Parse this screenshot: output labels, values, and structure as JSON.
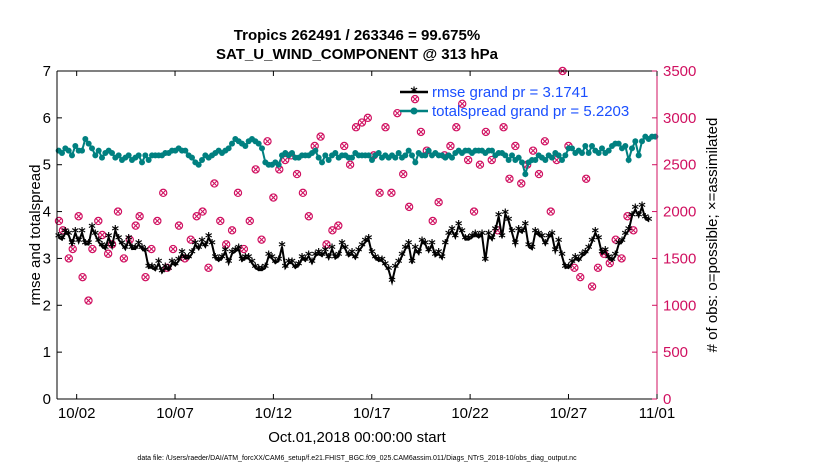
{
  "chart_data": {
    "type": "line",
    "title_line1": "Tropics 262491 / 263346 = 99.675%",
    "title_line2": "SAT_U_WIND_COMPONENT @ 313 hPa",
    "xlabel": "Oct.01,2018 00:00:00 start",
    "ylabel_left": "rmse and totalspread",
    "ylabel_right": "# of obs: o=possible; ×=assimilated",
    "footnote": "data file: /Users/raeder/DAI/ATM_forcXX/CAM6_setup/f.e21.FHIST_BGC.f09_025.CAM6assim.011/Diags_NTrS_2018-10/obs_diag_output.nc",
    "xlim": [
      0.5,
      31.0
    ],
    "ylim_left": [
      0,
      7
    ],
    "ylim_right": [
      0,
      3500
    ],
    "x_ticks": [
      1.5,
      6.5,
      11.5,
      16.5,
      21.5,
      26.5,
      31.0
    ],
    "x_tick_labels": [
      "10/02",
      "10/07",
      "10/12",
      "10/17",
      "10/22",
      "10/27",
      "11/01"
    ],
    "y_ticks_left": [
      0,
      1,
      2,
      3,
      4,
      5,
      6,
      7
    ],
    "y_tick_labels_left": [
      "0",
      "1",
      "2",
      "3",
      "4",
      "5",
      "6",
      "7"
    ],
    "y_ticks_right": [
      0,
      500,
      1000,
      1500,
      2000,
      2500,
      3000,
      3500
    ],
    "y_tick_labels_right": [
      "0",
      "500",
      "1000",
      "1500",
      "2000",
      "2500",
      "3000",
      "3500"
    ],
    "colors": {
      "rmse": "#000000",
      "spread": "#008080",
      "obs": "#d01060",
      "legend_text": "#1a4fff",
      "right_axis": "#d01060"
    },
    "series": [
      {
        "name": "rmse grand pr = 3.1741",
        "axis": "left",
        "marker": "star",
        "values": [
          3.45,
          3.4,
          3.55,
          3.5,
          3.3,
          3.55,
          3.35,
          3.55,
          3.3,
          3.3,
          3.65,
          3.5,
          3.35,
          3.25,
          3.2,
          3.45,
          3.25,
          3.6,
          3.4,
          3.3,
          3.2,
          3.4,
          3.2,
          3.2,
          3.3,
          3.2,
          3.15,
          2.8,
          2.8,
          2.75,
          2.9,
          2.7,
          2.8,
          2.75,
          2.9,
          2.85,
          2.95,
          3.1,
          3.0,
          3.0,
          3.1,
          3.3,
          3.2,
          3.35,
          3.25,
          3.45,
          3.3,
          3.0,
          2.95,
          3.0,
          3.15,
          2.9,
          3.1,
          3.15,
          3.2,
          2.95,
          3.0,
          3.0,
          2.9,
          2.8,
          2.75,
          2.75,
          2.8,
          3.05,
          3.0,
          2.9,
          2.95,
          3.25,
          2.8,
          2.9,
          2.9,
          2.8,
          2.85,
          3.0,
          2.95,
          3.05,
          2.9,
          3.05,
          3.1,
          3.05,
          3.15,
          3.0,
          3.2,
          3.0,
          3.05,
          3.3,
          3.2,
          3.05,
          3.1,
          3.0,
          3.15,
          3.25,
          3.35,
          3.4,
          3.1,
          3.0,
          2.95,
          2.95,
          2.85,
          2.75,
          2.5,
          2.8,
          2.9,
          3.05,
          3.2,
          3.3,
          2.9,
          3.2,
          3.1,
          3.35,
          3.3,
          3.15,
          3.3,
          3.05,
          3.1,
          3.0,
          3.3,
          3.5,
          3.6,
          3.45,
          3.7,
          3.55,
          3.4,
          3.4,
          3.45,
          3.5,
          3.45,
          3.5,
          2.95,
          3.5,
          3.4,
          3.6,
          3.9,
          3.45,
          3.95,
          3.8,
          3.55,
          3.3,
          3.6,
          3.55,
          3.7,
          3.25,
          3.2,
          3.55,
          3.5,
          3.45,
          3.3,
          3.45,
          3.5,
          3.15,
          3.35,
          3.05,
          2.8,
          2.8,
          2.9,
          3.0,
          2.95,
          3.05,
          3.1,
          3.2,
          3.35,
          3.55,
          3.4,
          3.1,
          3.15,
          3.0,
          2.95,
          3.05,
          3.3,
          3.35,
          3.5,
          3.6,
          3.9,
          4.05,
          3.9,
          4.1,
          3.85,
          3.8
        ]
      },
      {
        "name": "totalspread grand pr = 5.2203",
        "axis": "left",
        "marker": "circle",
        "values": [
          5.3,
          5.25,
          5.35,
          5.3,
          5.2,
          5.4,
          5.3,
          5.3,
          5.55,
          5.45,
          5.35,
          5.2,
          5.3,
          5.15,
          5.25,
          5.3,
          5.25,
          5.15,
          5.2,
          5.1,
          5.15,
          5.2,
          5.1,
          5.15,
          5.2,
          5.05,
          5.2,
          5.1,
          5.2,
          5.2,
          5.2,
          5.2,
          5.25,
          5.25,
          5.3,
          5.3,
          5.35,
          5.3,
          5.3,
          5.2,
          5.15,
          5.05,
          5.0,
          5.1,
          5.2,
          5.15,
          5.2,
          5.25,
          5.3,
          5.25,
          5.3,
          5.35,
          5.45,
          5.55,
          5.5,
          5.45,
          5.4,
          5.5,
          5.55,
          5.5,
          5.45,
          5.35,
          5.05,
          5.0,
          5.0,
          5.05,
          5.0,
          5.2,
          5.25,
          5.2,
          5.25,
          5.15,
          5.15,
          5.2,
          5.2,
          5.2,
          5.25,
          5.3,
          5.15,
          5.05,
          5.2,
          5.1,
          5.2,
          5.25,
          5.15,
          5.2,
          5.2,
          5.15,
          5.15,
          5.25,
          5.2,
          5.2,
          5.2,
          5.2,
          5.1,
          5.2,
          5.25,
          5.15,
          5.2,
          5.15,
          5.2,
          5.15,
          5.25,
          5.15,
          5.2,
          5.3,
          5.2,
          5.05,
          5.25,
          5.2,
          5.2,
          5.3,
          5.2,
          5.25,
          5.2,
          5.2,
          5.15,
          5.2,
          5.15,
          5.25,
          5.3,
          5.25,
          5.3,
          5.3,
          5.25,
          5.3,
          5.3,
          5.3,
          5.25,
          5.3,
          5.3,
          5.2,
          5.25,
          5.25,
          5.2,
          5.1,
          5.2,
          5.1,
          5.15,
          5.05,
          4.8,
          5.05,
          5.1,
          5.1,
          5.2,
          5.15,
          5.1,
          5.2,
          5.15,
          5.25,
          5.2,
          5.1,
          5.2,
          5.35,
          5.35,
          5.25,
          5.3,
          5.25,
          5.4,
          5.25,
          5.4,
          5.3,
          5.25,
          5.35,
          5.25,
          5.3,
          5.4,
          5.45,
          5.45,
          5.35,
          5.4,
          5.1,
          5.35,
          5.5,
          5.2,
          5.5,
          5.6,
          5.55,
          5.6,
          5.6
        ]
      },
      {
        "name": "obs possible (o)",
        "axis": "right",
        "marker": "o",
        "values": [
          1900,
          1800,
          1500,
          1600,
          1950,
          1300,
          1050,
          1600,
          1900,
          1750,
          1550,
          1650,
          2000,
          1500,
          1700,
          1850,
          1950,
          1300,
          1600,
          1900,
          2200,
          1400,
          1600,
          1850,
          1500,
          1700,
          1950,
          2000,
          1400,
          2300,
          1900,
          1650,
          1800,
          2200,
          1600,
          1900,
          2450,
          1700,
          2750,
          2150,
          2450,
          2550,
          2600,
          2400,
          2200,
          1950,
          2700,
          2800,
          1650,
          1800,
          1850,
          2700,
          2500,
          2900,
          2950,
          3000,
          2600,
          2200,
          2900,
          2200,
          3050,
          2400,
          2050,
          3200,
          2850,
          2650,
          1900,
          2100,
          2600,
          2700,
          2900,
          3150,
          2550,
          2000,
          2500,
          2850,
          2550,
          1800,
          2900,
          2350,
          2700,
          2300,
          2500,
          2650,
          2400,
          2750,
          2000,
          2550,
          3500,
          2700,
          1400,
          1300,
          2350,
          1200,
          1400,
          1550,
          1450,
          1700,
          1500,
          1950,
          1800
        ],
        "x": [
          0.6,
          0.8,
          1.1,
          1.3,
          1.6,
          1.8,
          2.1,
          2.3,
          2.6,
          2.8,
          3.1,
          3.3,
          3.6,
          3.9,
          4.2,
          4.5,
          4.7,
          5.0,
          5.3,
          5.6,
          5.9,
          6.1,
          6.4,
          6.7,
          7.0,
          7.3,
          7.6,
          7.9,
          8.2,
          8.5,
          8.8,
          9.1,
          9.4,
          9.7,
          10.0,
          10.3,
          10.6,
          10.9,
          11.2,
          11.5,
          11.8,
          12.1,
          12.4,
          12.7,
          13.0,
          13.3,
          13.6,
          13.9,
          14.2,
          14.5,
          14.8,
          15.1,
          15.4,
          15.7,
          16.0,
          16.3,
          16.6,
          16.9,
          17.2,
          17.5,
          17.8,
          18.1,
          18.4,
          18.7,
          19.0,
          19.3,
          19.6,
          19.9,
          20.2,
          20.5,
          20.8,
          21.1,
          21.4,
          21.7,
          22.0,
          22.3,
          22.6,
          22.9,
          23.2,
          23.5,
          23.8,
          24.1,
          24.4,
          24.7,
          25.0,
          25.3,
          25.6,
          25.9,
          26.2,
          26.5,
          26.8,
          27.1,
          27.4,
          27.7,
          28.0,
          28.3,
          28.6,
          28.9,
          29.2,
          29.5,
          29.8
        ]
      }
    ]
  }
}
